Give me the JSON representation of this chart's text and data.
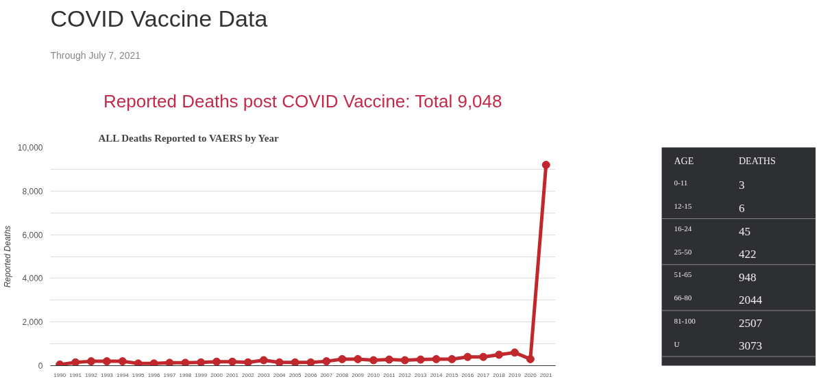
{
  "chart_data": [
    {
      "type": "line",
      "title": "ALL Deaths Reported to VAERS by Year",
      "ylabel": "Reported Deaths",
      "annotations": [
        "COVID Vaccine Data",
        "Through July 7, 2021",
        "Reported Deaths post COVID Vaccine: Total 9,048"
      ],
      "x": [
        1990,
        1991,
        1992,
        1993,
        1994,
        1995,
        1996,
        1997,
        1998,
        1999,
        2000,
        2001,
        2002,
        2003,
        2004,
        2005,
        2006,
        2007,
        2008,
        2009,
        2010,
        2011,
        2012,
        2013,
        2014,
        2015,
        2016,
        2017,
        2018,
        2019,
        2020,
        2021
      ],
      "series": [
        {
          "color": "#c0282d",
          "values": [
            50,
            150,
            200,
            200,
            200,
            100,
            100,
            130,
            130,
            150,
            180,
            180,
            150,
            250,
            150,
            150,
            150,
            200,
            300,
            300,
            250,
            280,
            250,
            280,
            300,
            300,
            400,
            400,
            500,
            600,
            300,
            9200
          ]
        }
      ],
      "xlim": [
        1989.4,
        2021.6
      ],
      "xticks": [
        1990,
        1991,
        1992,
        1993,
        1994,
        1995,
        1996,
        1997,
        1998,
        1999,
        2000,
        2001,
        2002,
        2003,
        2004,
        2005,
        2006,
        2007,
        2008,
        2009,
        2010,
        2011,
        2012,
        2013,
        2014,
        2015,
        2016,
        2017,
        2018,
        2019,
        2020,
        2021
      ],
      "ylim": [
        0,
        10000
      ],
      "yticks": [
        0,
        {
          "value": 1000,
          "label": null
        },
        {
          "value": 2000,
          "label": "2,000"
        },
        {
          "value": 3000,
          "label": null
        },
        {
          "value": 4000,
          "label": "4,000"
        },
        {
          "value": 5000,
          "label": null
        },
        {
          "value": 6000,
          "label": "6,000"
        },
        {
          "value": 7000,
          "label": null
        },
        {
          "value": 8000,
          "label": "8,000"
        },
        {
          "value": 9000,
          "label": null
        },
        {
          "value": 10000,
          "label": "10,000"
        }
      ],
      "grid": "y",
      "marker": "circle",
      "line_style": "solid"
    },
    {
      "type": "other",
      "annotations": [
        "AGE",
        "DEATHS"
      ],
      "categories": [
        "0-11",
        "12-15",
        "16-24",
        "25-50",
        "51-65",
        "66-80",
        "81-100",
        "U"
      ],
      "values": [
        3,
        6,
        45,
        422,
        948,
        2044,
        2507,
        3073
      ],
      "data_labels": true
    }
  ]
}
